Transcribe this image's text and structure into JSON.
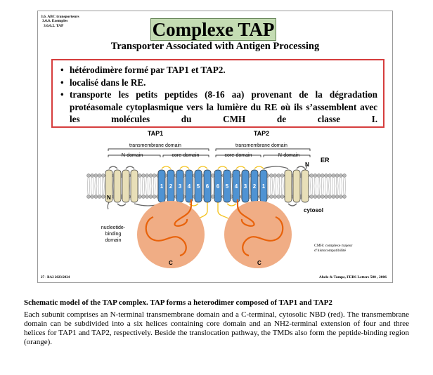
{
  "slide": {
    "breadcrumbs": [
      "3.6. ABC transporteurs",
      "3.6.6. Exemples",
      "3.6.6.2. TAP"
    ],
    "title": "Complexe TAP",
    "subtitle": "Transporter Associated with Antigen Processing",
    "bullets": [
      "hétérodimère formé par TAP1 et TAP2.",
      "localisé dans le RE.",
      "transporte les petits peptides (8-16 aa) provenant de la dégradation protéasomale cytoplasmique vers la lumière du RE où ils s’assemblent avec les molécules du CMH de classe I."
    ],
    "footer_left": "27 - BA2 2023/2024",
    "footer_right": "Abele & Tampe, FEBS Letters 580 , 2006"
  },
  "figure": {
    "tap1_label": "TAP1",
    "tap2_label": "TAP2",
    "tmd_label": "transmembrane domain",
    "n_domain_label": "N-domain",
    "core_domain_label": "core-domain",
    "er_label": "ER",
    "n_term_label": "N",
    "cytosol_label": "cytosol",
    "nbd_label_lines": [
      "nucleotide-",
      "binding",
      "domain"
    ],
    "c_term_label": "C",
    "cmh_lines": [
      "CMH: complexe majeur",
      "d’histocompatibilité"
    ],
    "tap1_helix_numbers": [
      "1",
      "2",
      "3",
      "4",
      "5",
      "6"
    ],
    "tap2_helix_numbers": [
      "6",
      "5",
      "4",
      "3",
      "2",
      "1"
    ],
    "colors": {
      "n_domain_helix": "#e8dfb8",
      "core_helix": "#4f93d3",
      "nbd": "#f0ad85",
      "nbd_loop": "#e8620a",
      "loop": "#f4c21a",
      "membrane": "#b8b8b8"
    }
  },
  "caption": {
    "title": "Schematic model of the TAP complex. TAP forms a heterodimer composed of TAP1 and TAP2",
    "body": "Each subunit comprises an N-terminal transmembrane domain and a C-terminal, cytosolic NBD (red). The transmembrane domain can be subdivided into a six helices containing core domain and an NH2-terminal extension of four and three helices for TAP1 and TAP2, respectively. Beside the translocation pathway, the TMDs also form the peptide-binding region (orange)."
  }
}
